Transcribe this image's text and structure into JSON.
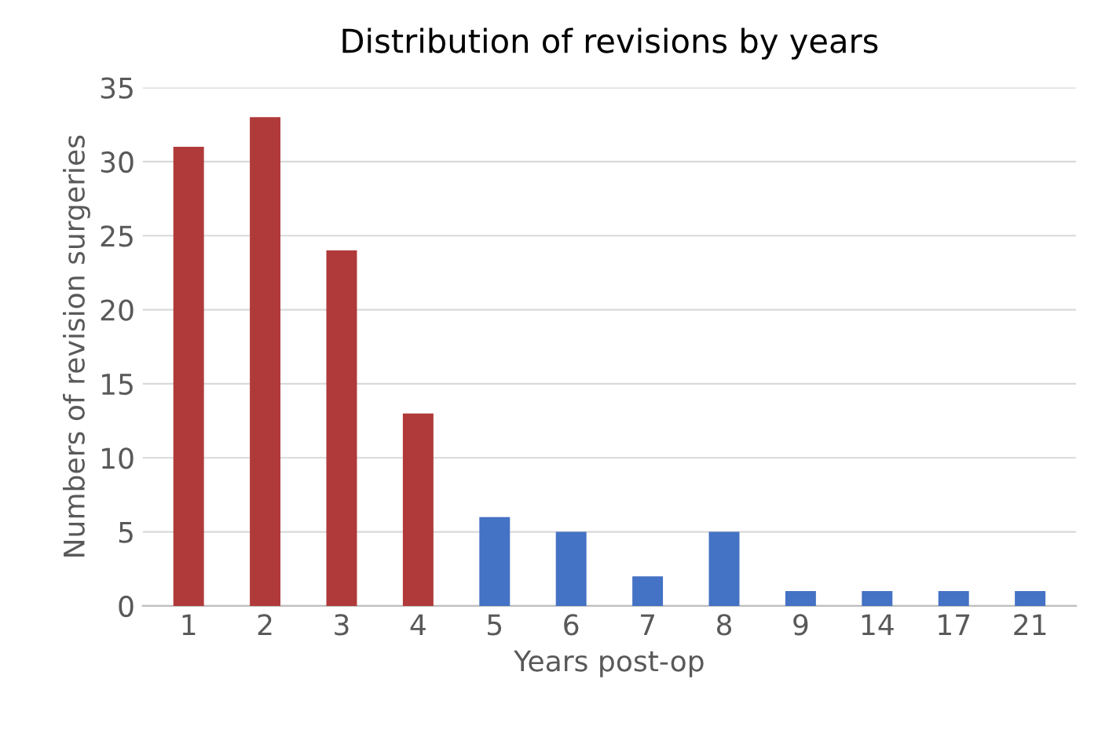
{
  "chart_data": {
    "type": "bar",
    "title": "Distribution of revisions by years",
    "xlabel": "Years post-op",
    "ylabel": "Numbers of revision surgeries",
    "categories": [
      "1",
      "2",
      "3",
      "4",
      "5",
      "6",
      "7",
      "8",
      "9",
      "14",
      "17",
      "21"
    ],
    "values": [
      31,
      33,
      24,
      13,
      6,
      5,
      2,
      5,
      1,
      1,
      1,
      1
    ],
    "colors": [
      "#b03a3a",
      "#b03a3a",
      "#b03a3a",
      "#b03a3a",
      "#4472c4",
      "#4472c4",
      "#4472c4",
      "#4472c4",
      "#4472c4",
      "#4472c4",
      "#4472c4",
      "#4472c4"
    ],
    "ylim": [
      0,
      35
    ],
    "yticks": [
      0,
      5,
      10,
      15,
      20,
      25,
      30,
      35
    ],
    "grid": "y"
  }
}
